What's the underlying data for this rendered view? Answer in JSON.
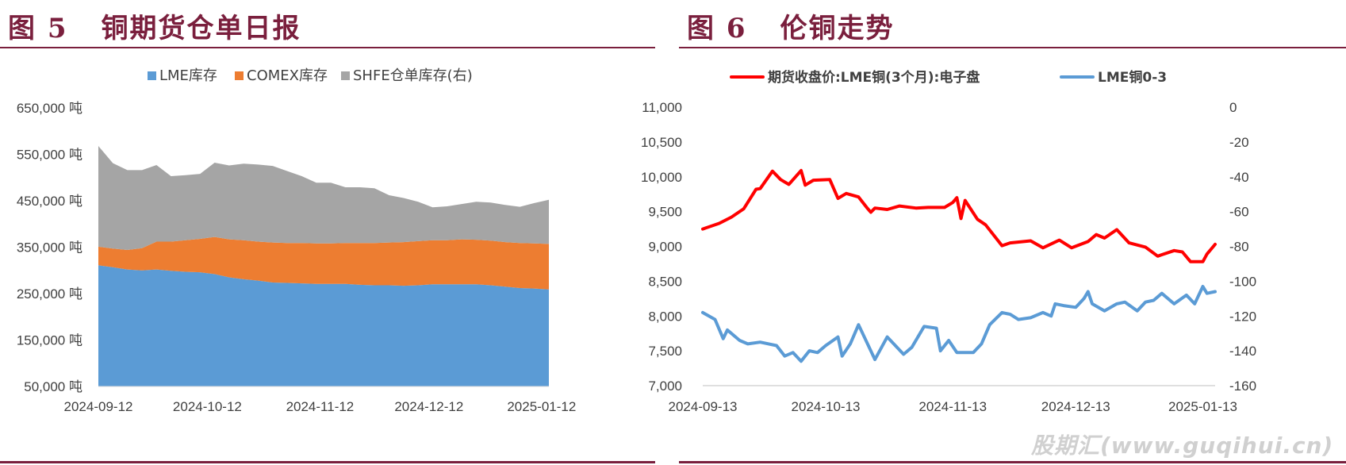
{
  "panels": {
    "left": {
      "figure_label": "图 5",
      "title": "铜期货仓单日报"
    },
    "right": {
      "figure_label": "图 6",
      "title": "伦铜走势"
    }
  },
  "watermark": "股期汇(www.guqihui.cn)",
  "colors": {
    "lme_stock": "#5b9bd5",
    "comex_stock": "#ed7d31",
    "shfe_stock": "#a5a5a5",
    "lme_3m_price": "#ff0000",
    "lme_spread": "#5b9bd5",
    "title_color": "#7a1f3d"
  },
  "chart_data": [
    {
      "type": "area",
      "stacked": true,
      "legend_position": "top",
      "y_tick_labels": [
        "650,000 吨",
        "550,000 吨",
        "450,000 吨",
        "350,000 吨",
        "250,000 吨",
        "150,000 吨",
        "50,000 吨"
      ],
      "y_ticks": [
        650000,
        550000,
        450000,
        350000,
        250000,
        150000,
        50000
      ],
      "ylim": [
        50000,
        650000
      ],
      "x_tick_labels": [
        "2024-09-12",
        "2024-10-12",
        "2024-11-12",
        "2024-12-12",
        "2025-01-12"
      ],
      "x_ticks": [
        "2024-09-12",
        "2024-10-12",
        "2024-11-12",
        "2024-12-12",
        "2025-01-12"
      ],
      "xlim": [
        "2024-09-12",
        "2025-01-14"
      ],
      "grid": false,
      "series": [
        {
          "name": "LME库存",
          "points": [
            [
              "2024-09-12",
              311000
            ],
            [
              "2024-09-16",
              307000
            ],
            [
              "2024-09-20",
              302000
            ],
            [
              "2024-09-24",
              300000
            ],
            [
              "2024-09-28",
              302000
            ],
            [
              "2024-10-02",
              299000
            ],
            [
              "2024-10-06",
              297000
            ],
            [
              "2024-10-10",
              296000
            ],
            [
              "2024-10-14",
              292000
            ],
            [
              "2024-10-18",
              285000
            ],
            [
              "2024-10-22",
              281000
            ],
            [
              "2024-10-26",
              278000
            ],
            [
              "2024-10-30",
              274000
            ],
            [
              "2024-11-03",
              273000
            ],
            [
              "2024-11-07",
              272000
            ],
            [
              "2024-11-11",
              271000
            ],
            [
              "2024-11-15",
              271000
            ],
            [
              "2024-11-19",
              271000
            ],
            [
              "2024-11-23",
              269000
            ],
            [
              "2024-11-27",
              268000
            ],
            [
              "2024-12-01",
              268000
            ],
            [
              "2024-12-05",
              267000
            ],
            [
              "2024-12-09",
              268000
            ],
            [
              "2024-12-13",
              270000
            ],
            [
              "2024-12-17",
              270000
            ],
            [
              "2024-12-21",
              270000
            ],
            [
              "2024-12-25",
              270000
            ],
            [
              "2024-12-29",
              268000
            ],
            [
              "2025-01-02",
              265000
            ],
            [
              "2025-01-06",
              262000
            ],
            [
              "2025-01-10",
              261000
            ],
            [
              "2025-01-14",
              259000
            ]
          ]
        },
        {
          "name": "COMEX库存",
          "points": [
            [
              "2024-09-12",
              40000
            ],
            [
              "2024-09-16",
              40000
            ],
            [
              "2024-09-20",
              42000
            ],
            [
              "2024-09-24",
              48000
            ],
            [
              "2024-09-28",
              60000
            ],
            [
              "2024-10-02",
              63000
            ],
            [
              "2024-10-06",
              68000
            ],
            [
              "2024-10-10",
              72000
            ],
            [
              "2024-10-14",
              80000
            ],
            [
              "2024-10-18",
              82000
            ],
            [
              "2024-10-22",
              84000
            ],
            [
              "2024-10-26",
              84000
            ],
            [
              "2024-10-30",
              86000
            ],
            [
              "2024-11-03",
              86000
            ],
            [
              "2024-11-07",
              87000
            ],
            [
              "2024-11-11",
              87000
            ],
            [
              "2024-11-15",
              87000
            ],
            [
              "2024-11-19",
              88000
            ],
            [
              "2024-11-23",
              90000
            ],
            [
              "2024-11-27",
              91000
            ],
            [
              "2024-12-01",
              92000
            ],
            [
              "2024-12-05",
              94000
            ],
            [
              "2024-12-09",
              95000
            ],
            [
              "2024-12-13",
              95000
            ],
            [
              "2024-12-17",
              95000
            ],
            [
              "2024-12-21",
              97000
            ],
            [
              "2024-12-25",
              96000
            ],
            [
              "2024-12-29",
              96000
            ],
            [
              "2025-01-02",
              96000
            ],
            [
              "2025-01-06",
              97000
            ],
            [
              "2025-01-10",
              97000
            ],
            [
              "2025-01-14",
              98000
            ]
          ]
        },
        {
          "name": "SHFE仓单库存(右)",
          "points": [
            [
              "2024-09-12",
              217000
            ],
            [
              "2024-09-16",
              184000
            ],
            [
              "2024-09-20",
              172000
            ],
            [
              "2024-09-24",
              168000
            ],
            [
              "2024-09-28",
              165000
            ],
            [
              "2024-10-02",
              141000
            ],
            [
              "2024-10-06",
              140000
            ],
            [
              "2024-10-10",
              140000
            ],
            [
              "2024-10-14",
              160000
            ],
            [
              "2024-10-18",
              159000
            ],
            [
              "2024-10-22",
              165000
            ],
            [
              "2024-10-26",
              166000
            ],
            [
              "2024-10-30",
              165000
            ],
            [
              "2024-11-03",
              155000
            ],
            [
              "2024-11-07",
              144000
            ],
            [
              "2024-11-11",
              131000
            ],
            [
              "2024-11-15",
              131000
            ],
            [
              "2024-11-19",
              120000
            ],
            [
              "2024-11-23",
              120000
            ],
            [
              "2024-11-27",
              118000
            ],
            [
              "2024-12-01",
              102000
            ],
            [
              "2024-12-05",
              95000
            ],
            [
              "2024-12-09",
              85000
            ],
            [
              "2024-12-13",
              71000
            ],
            [
              "2024-12-17",
              73000
            ],
            [
              "2024-12-21",
              76000
            ],
            [
              "2024-12-25",
              82000
            ],
            [
              "2024-12-29",
              82000
            ],
            [
              "2025-01-02",
              80000
            ],
            [
              "2025-01-06",
              78000
            ],
            [
              "2025-01-10",
              87000
            ],
            [
              "2025-01-14",
              95000
            ]
          ]
        }
      ]
    },
    {
      "type": "line",
      "legend_position": "top",
      "y_tick_labels": [
        "11,000",
        "10,500",
        "10,000",
        "9,500",
        "9,000",
        "8,500",
        "8,000",
        "7,500",
        "7,000"
      ],
      "y_ticks": [
        11000,
        10500,
        10000,
        9500,
        9000,
        8500,
        8000,
        7500,
        7000
      ],
      "ylim": [
        7000,
        11000
      ],
      "y2_tick_labels": [
        "0",
        "-20",
        "-40",
        "-60",
        "-80",
        "-100",
        "-120",
        "-140",
        "-160"
      ],
      "y2_ticks": [
        0,
        -20,
        -40,
        -60,
        -80,
        -100,
        -120,
        -140,
        -160
      ],
      "y2lim": [
        -160,
        0
      ],
      "x_tick_labels": [
        "2024-09-13",
        "2024-10-13",
        "2024-11-13",
        "2024-12-13",
        "2025-01-13"
      ],
      "x_ticks": [
        "2024-09-13",
        "2024-10-13",
        "2024-11-13",
        "2024-12-13",
        "2025-01-13"
      ],
      "xlim": [
        "2024-09-13",
        "2025-01-16"
      ],
      "grid": false,
      "series": [
        {
          "name": "期货收盘价:LME铜(3个月):电子盘",
          "axis": "left",
          "points": [
            [
              "2024-09-13",
              9250
            ],
            [
              "2024-09-17",
              9330
            ],
            [
              "2024-09-20",
              9420
            ],
            [
              "2024-09-23",
              9540
            ],
            [
              "2024-09-26",
              9820
            ],
            [
              "2024-09-27",
              9830
            ],
            [
              "2024-09-30",
              10080
            ],
            [
              "2024-10-02",
              9960
            ],
            [
              "2024-10-04",
              9890
            ],
            [
              "2024-10-07",
              10090
            ],
            [
              "2024-10-08",
              9880
            ],
            [
              "2024-10-10",
              9950
            ],
            [
              "2024-10-14",
              9960
            ],
            [
              "2024-10-16",
              9690
            ],
            [
              "2024-10-18",
              9760
            ],
            [
              "2024-10-21",
              9710
            ],
            [
              "2024-10-23",
              9560
            ],
            [
              "2024-10-24",
              9490
            ],
            [
              "2024-10-25",
              9550
            ],
            [
              "2024-10-28",
              9530
            ],
            [
              "2024-10-31",
              9580
            ],
            [
              "2024-11-04",
              9550
            ],
            [
              "2024-11-07",
              9560
            ],
            [
              "2024-11-11",
              9560
            ],
            [
              "2024-11-13",
              9630
            ],
            [
              "2024-11-14",
              9700
            ],
            [
              "2024-11-15",
              9400
            ],
            [
              "2024-11-16",
              9660
            ],
            [
              "2024-11-19",
              9390
            ],
            [
              "2024-11-21",
              9310
            ],
            [
              "2024-11-25",
              9010
            ],
            [
              "2024-11-27",
              9050
            ],
            [
              "2024-12-02",
              9080
            ],
            [
              "2024-12-05",
              8980
            ],
            [
              "2024-12-09",
              9090
            ],
            [
              "2024-12-12",
              8980
            ],
            [
              "2024-12-16",
              9070
            ],
            [
              "2024-12-18",
              9170
            ],
            [
              "2024-12-20",
              9120
            ],
            [
              "2024-12-23",
              9240
            ],
            [
              "2024-12-26",
              9050
            ],
            [
              "2024-12-30",
              8990
            ],
            [
              "2025-01-02",
              8860
            ],
            [
              "2025-01-03",
              8880
            ],
            [
              "2025-01-06",
              8940
            ],
            [
              "2025-01-08",
              8920
            ],
            [
              "2025-01-10",
              8780
            ],
            [
              "2025-01-13",
              8780
            ],
            [
              "2025-01-14",
              8890
            ],
            [
              "2025-01-16",
              9030
            ]
          ]
        },
        {
          "name": "LME铜0-3",
          "axis": "right",
          "points": [
            [
              "2024-09-13",
              -118
            ],
            [
              "2024-09-16",
              -122
            ],
            [
              "2024-09-18",
              -133
            ],
            [
              "2024-09-19",
              -128
            ],
            [
              "2024-09-22",
              -134
            ],
            [
              "2024-09-24",
              -136
            ],
            [
              "2024-09-27",
              -135
            ],
            [
              "2024-10-01",
              -137
            ],
            [
              "2024-10-03",
              -143
            ],
            [
              "2024-10-05",
              -141
            ],
            [
              "2024-10-07",
              -146
            ],
            [
              "2024-10-09",
              -140
            ],
            [
              "2024-10-11",
              -141
            ],
            [
              "2024-10-13",
              -137
            ],
            [
              "2024-10-16",
              -132
            ],
            [
              "2024-10-17",
              -143
            ],
            [
              "2024-10-19",
              -136
            ],
            [
              "2024-10-21",
              -125
            ],
            [
              "2024-10-25",
              -145
            ],
            [
              "2024-10-28",
              -132
            ],
            [
              "2024-11-01",
              -142
            ],
            [
              "2024-11-03",
              -138
            ],
            [
              "2024-11-06",
              -126
            ],
            [
              "2024-11-09",
              -127
            ],
            [
              "2024-11-10",
              -140
            ],
            [
              "2024-11-12",
              -134
            ],
            [
              "2024-11-14",
              -141
            ],
            [
              "2024-11-18",
              -141
            ],
            [
              "2024-11-20",
              -136
            ],
            [
              "2024-11-22",
              -125
            ],
            [
              "2024-11-25",
              -118
            ],
            [
              "2024-11-27",
              -119
            ],
            [
              "2024-11-29",
              -122
            ],
            [
              "2024-12-02",
              -121
            ],
            [
              "2024-12-05",
              -118
            ],
            [
              "2024-12-07",
              -120
            ],
            [
              "2024-12-08",
              -113
            ],
            [
              "2024-12-10",
              -114
            ],
            [
              "2024-12-13",
              -115
            ],
            [
              "2024-12-15",
              -110
            ],
            [
              "2024-12-16",
              -106
            ],
            [
              "2024-12-17",
              -113
            ],
            [
              "2024-12-20",
              -117
            ],
            [
              "2024-12-23",
              -113
            ],
            [
              "2024-12-25",
              -112
            ],
            [
              "2024-12-28",
              -117
            ],
            [
              "2024-12-30",
              -112
            ],
            [
              "2025-01-01",
              -111
            ],
            [
              "2025-01-03",
              -107
            ],
            [
              "2025-01-06",
              -113
            ],
            [
              "2025-01-09",
              -108
            ],
            [
              "2025-01-11",
              -113
            ],
            [
              "2025-01-13",
              -103
            ],
            [
              "2025-01-14",
              -107
            ],
            [
              "2025-01-16",
              -106
            ]
          ]
        }
      ]
    }
  ]
}
